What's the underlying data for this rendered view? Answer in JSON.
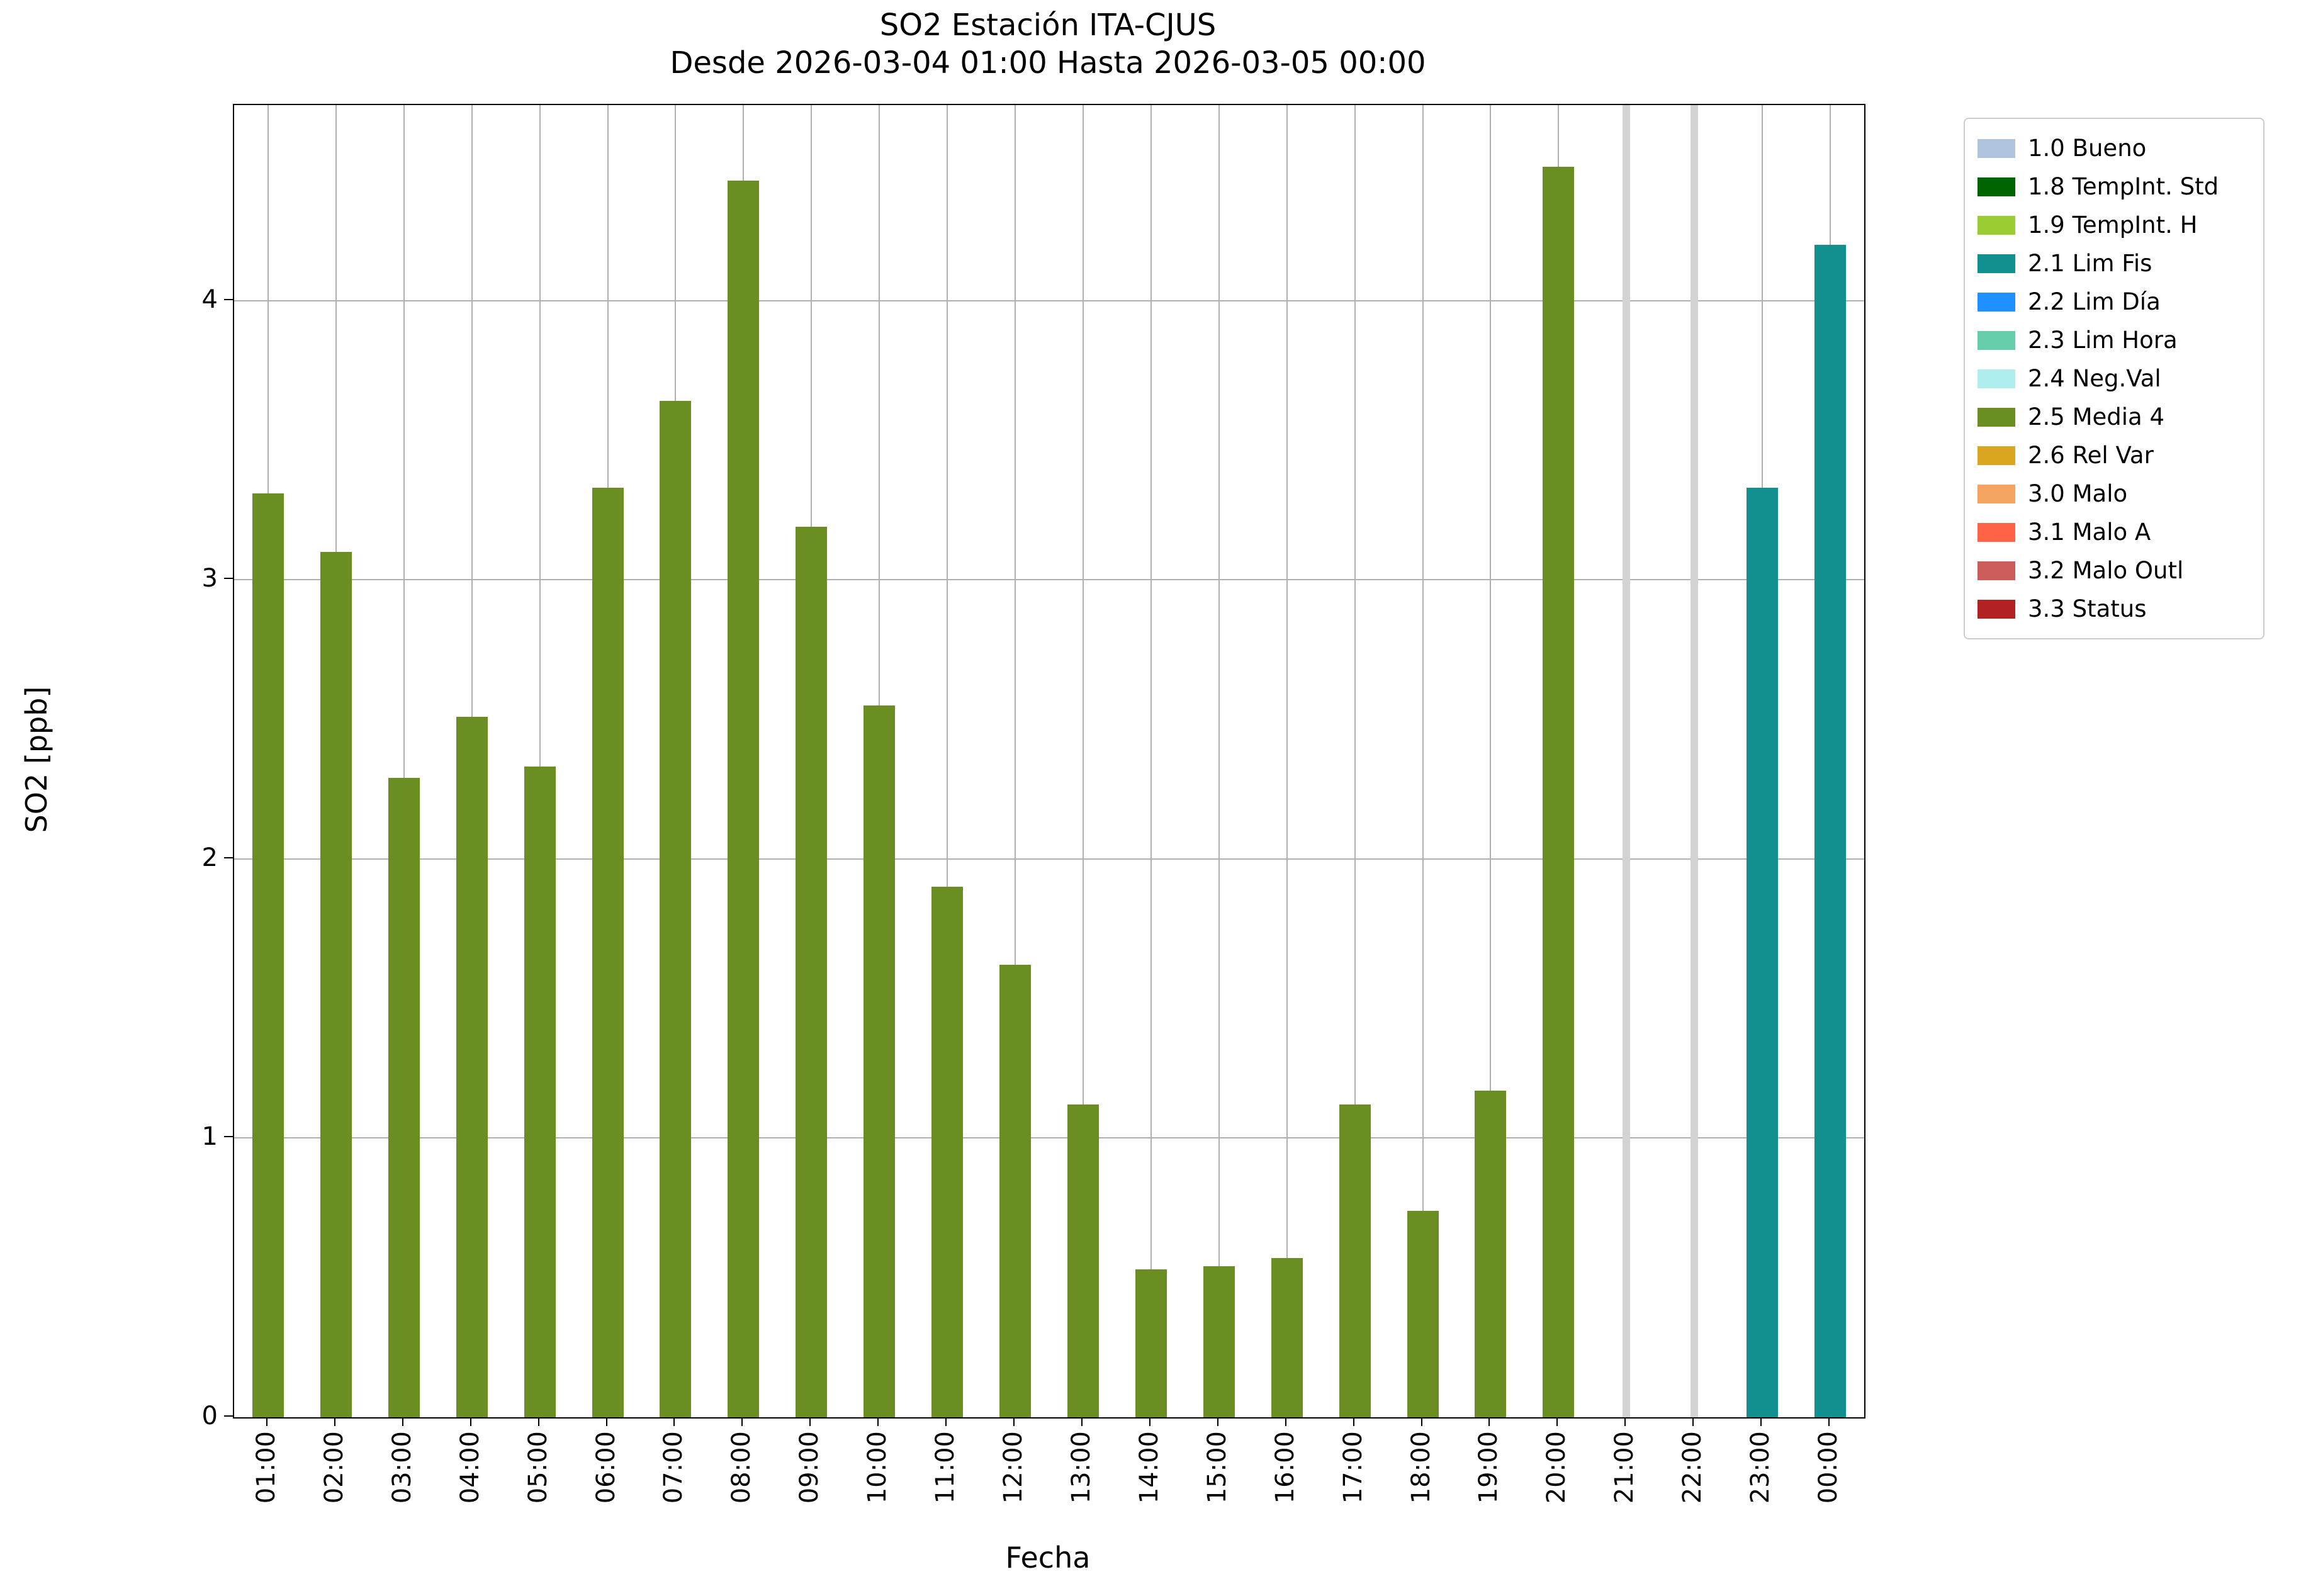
{
  "title": {
    "line1": "SO2 Estación ITA-CJUS",
    "line2": "Desde 2026-03-04 01:00 Hasta 2026-03-05 00:00"
  },
  "chart_data": {
    "type": "bar",
    "title": "SO2 Estación ITA-CJUS\nDesde 2026-03-04 01:00 Hasta 2026-03-05 00:00",
    "xlabel": "Fecha",
    "ylabel": "SO2 [ppb]",
    "ylim": [
      0,
      4.7
    ],
    "yticks": [
      0,
      1,
      2,
      3,
      4
    ],
    "grid": true,
    "legend_position": "outside-upper-right",
    "categories": [
      "01:00",
      "02:00",
      "03:00",
      "04:00",
      "05:00",
      "06:00",
      "07:00",
      "08:00",
      "09:00",
      "10:00",
      "11:00",
      "12:00",
      "13:00",
      "14:00",
      "15:00",
      "16:00",
      "17:00",
      "18:00",
      "19:00",
      "20:00",
      "21:00",
      "22:00",
      "23:00",
      "00:00"
    ],
    "values": [
      3.31,
      3.1,
      2.29,
      2.51,
      2.33,
      3.33,
      3.64,
      4.43,
      3.19,
      2.55,
      1.9,
      1.62,
      1.12,
      0.53,
      0.54,
      0.57,
      1.12,
      0.74,
      1.17,
      4.48,
      null,
      null,
      3.33,
      4.2
    ],
    "statuses": [
      "media4",
      "media4",
      "media4",
      "media4",
      "media4",
      "media4",
      "media4",
      "media4",
      "media4",
      "media4",
      "media4",
      "media4",
      "media4",
      "media4",
      "media4",
      "media4",
      "media4",
      "media4",
      "media4",
      "media4",
      "missing",
      "missing",
      "limfis",
      "limfis"
    ]
  },
  "colors": {
    "media4": "#6b8e23",
    "limfis": "#128f8f",
    "missing": "#d3d3d3",
    "grid": "#b0b0b0",
    "axis": "#000000"
  },
  "legend": {
    "items": [
      {
        "label": "1.0 Bueno",
        "color": "#b0c4de"
      },
      {
        "label": "1.8 TempInt. Std",
        "color": "#006400"
      },
      {
        "label": "1.9 TempInt. H",
        "color": "#9acd32"
      },
      {
        "label": "2.1 Lim Fis",
        "color": "#128f8f"
      },
      {
        "label": "2.2 Lim Día",
        "color": "#1e90ff"
      },
      {
        "label": "2.3 Lim Hora",
        "color": "#66cdaa"
      },
      {
        "label": "2.4 Neg.Val",
        "color": "#afeeee"
      },
      {
        "label": "2.5 Media 4",
        "color": "#6b8e23"
      },
      {
        "label": "2.6 Rel Var",
        "color": "#daa520"
      },
      {
        "label": "3.0 Malo",
        "color": "#f4a460"
      },
      {
        "label": "3.1 Malo A",
        "color": "#ff6347"
      },
      {
        "label": "3.2 Malo Outl",
        "color": "#cd5c5c"
      },
      {
        "label": "3.3 Status",
        "color": "#b22222"
      }
    ]
  }
}
